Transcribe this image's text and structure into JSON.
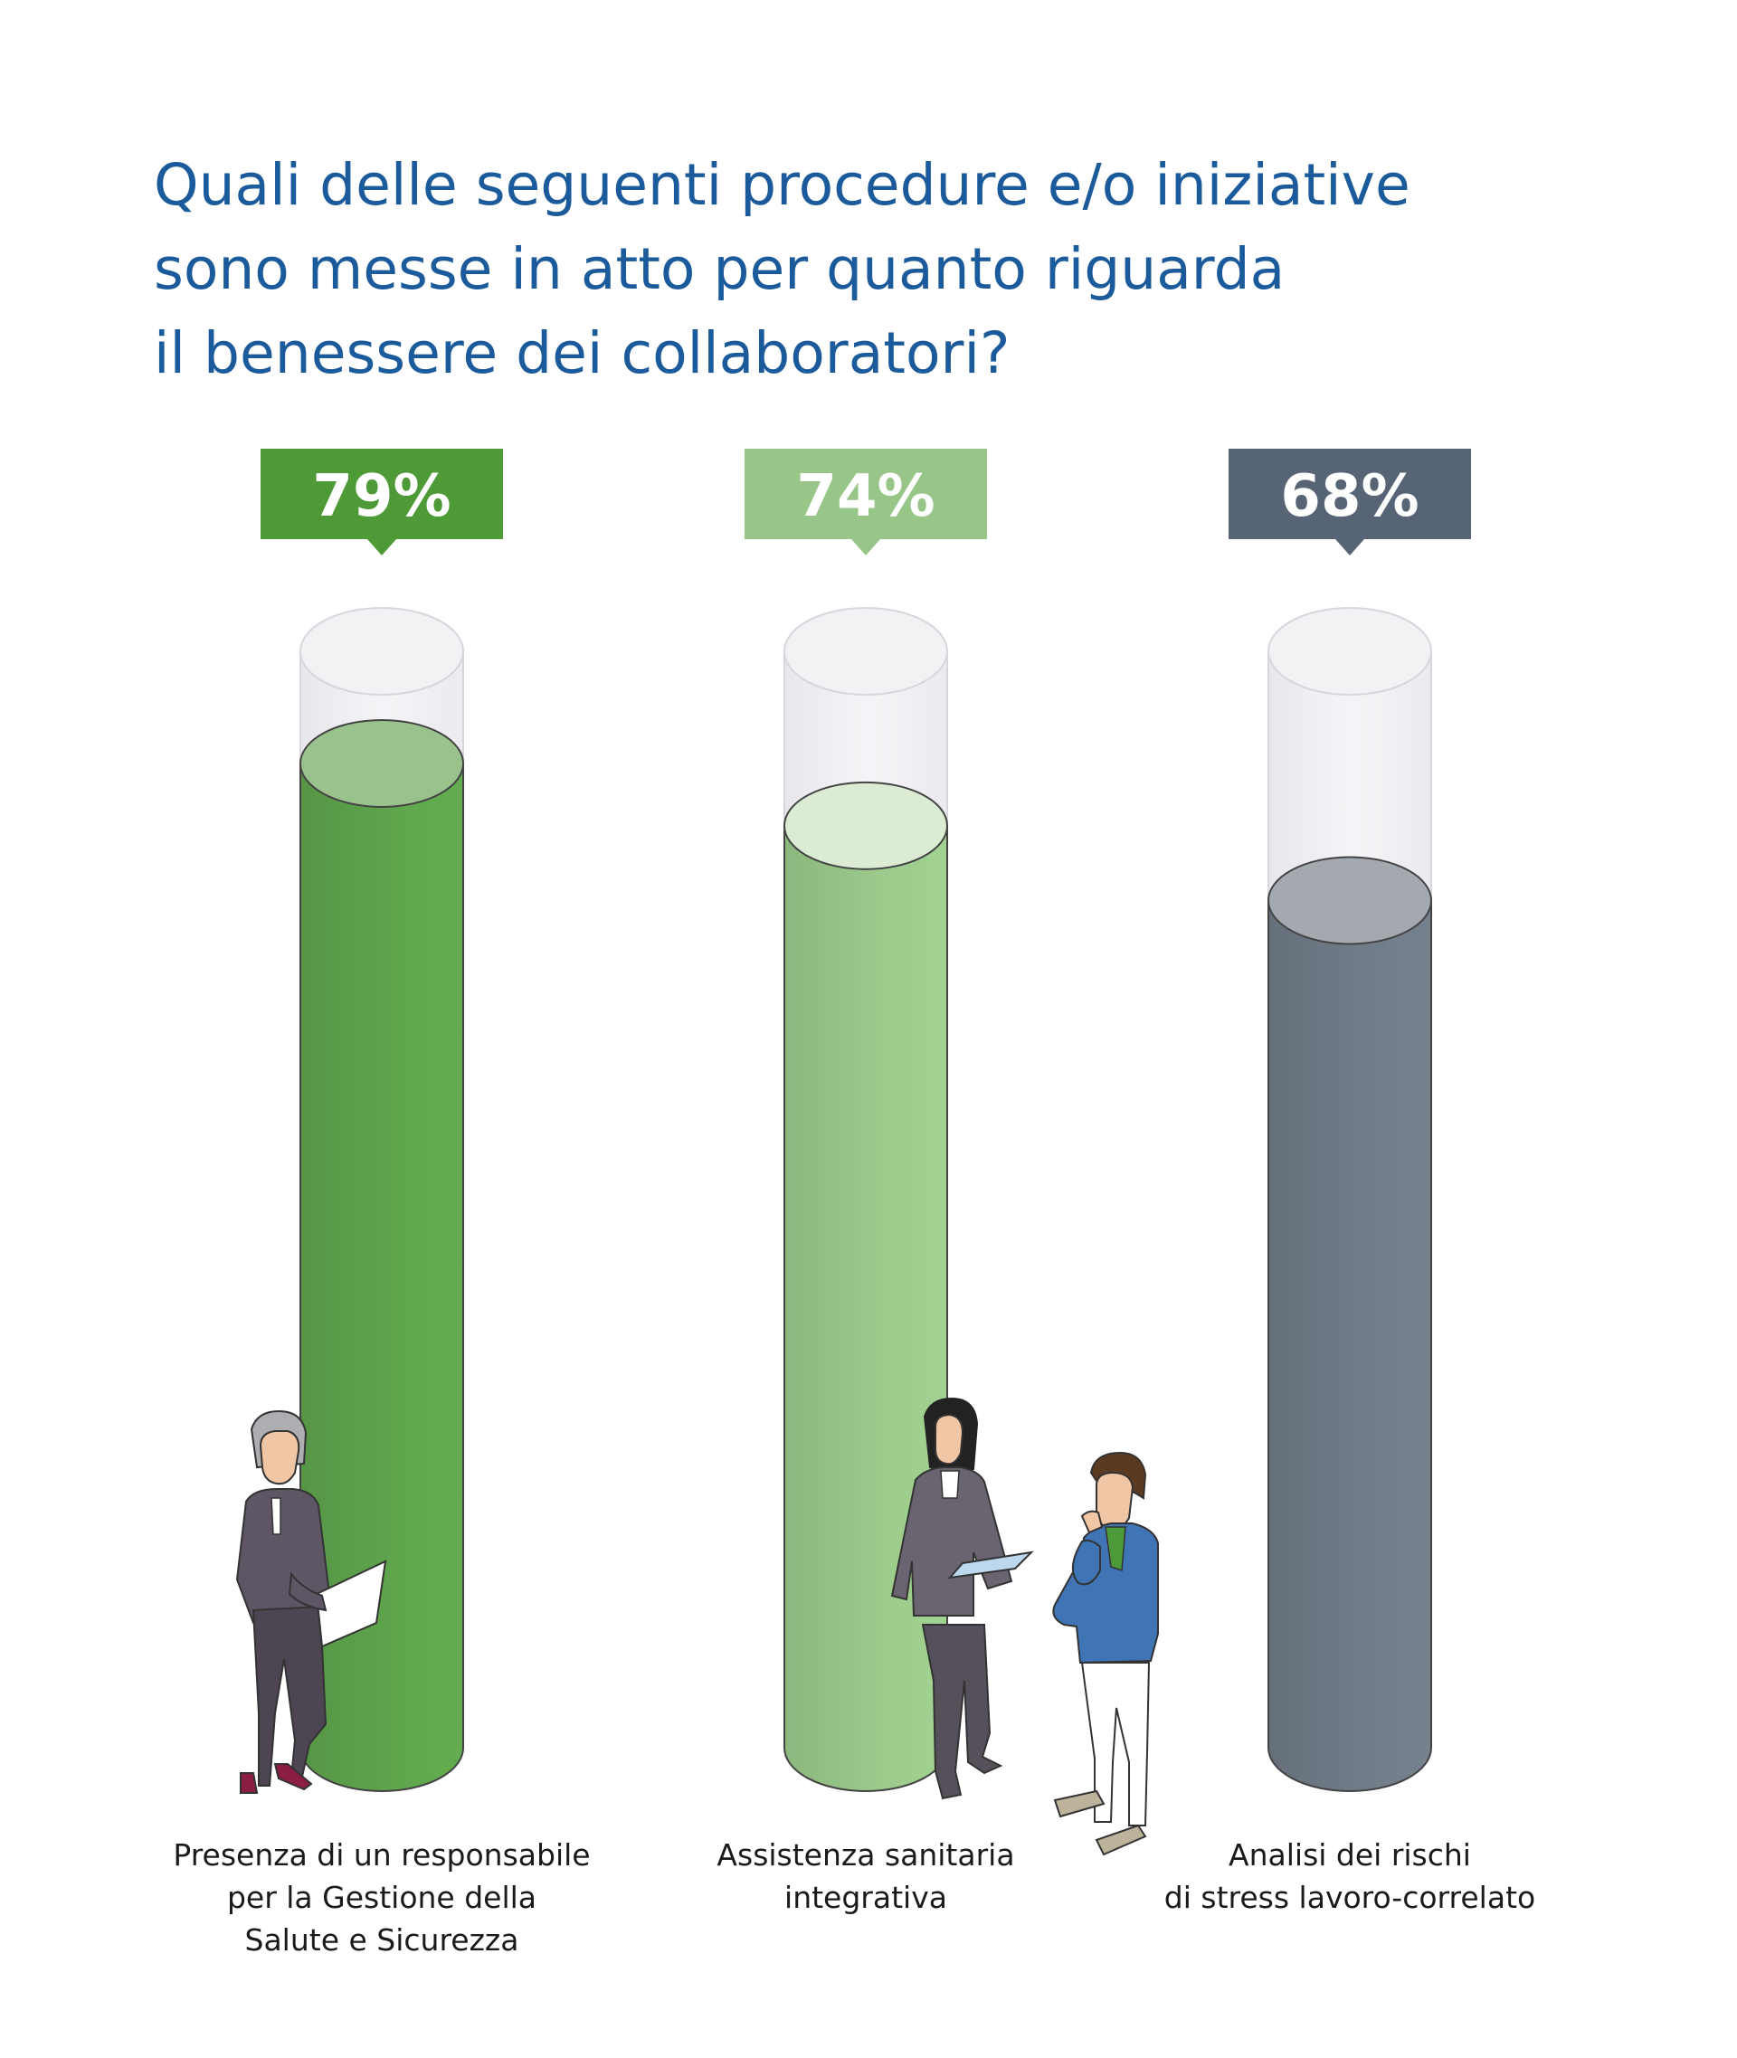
{
  "title_lines": [
    "Quali delle seguenti procedure e/o iniziative",
    "sono messe in atto per quanto riguarda",
    "il benessere dei collaboratori?"
  ],
  "chart_data": {
    "type": "bar",
    "title": "Quali delle seguenti procedure e/o iniziative sono messe in atto per quanto riguarda il benessere dei collaboratori?",
    "unit": "%",
    "ylim": [
      0,
      100
    ],
    "value_labels": [
      "79%",
      "74%",
      "68%"
    ],
    "categories": [
      [
        "Presenza di un responsabile",
        "per la Gestione della",
        "Salute e Sicurezza"
      ],
      [
        "Assistenza sanitaria",
        "integrativa"
      ],
      [
        "Analisi dei rischi",
        "di stress lavoro-correlato"
      ]
    ],
    "values": [
      79,
      74,
      68
    ],
    "colors": {
      "bars": [
        "#5fa64d",
        "#9ccb8c",
        "#717c89"
      ],
      "tops": [
        "#9ac28c",
        "#dbebd4",
        "#a4a9af"
      ],
      "labels": [
        "#4e9a36",
        "#97c688",
        "#566476"
      ],
      "tube": "#eeeef2",
      "title": "#1b5a9b"
    },
    "icons": [
      "woman-with-laptop-icon",
      "woman-with-tablet-icon",
      "man-thinking-icon"
    ]
  }
}
